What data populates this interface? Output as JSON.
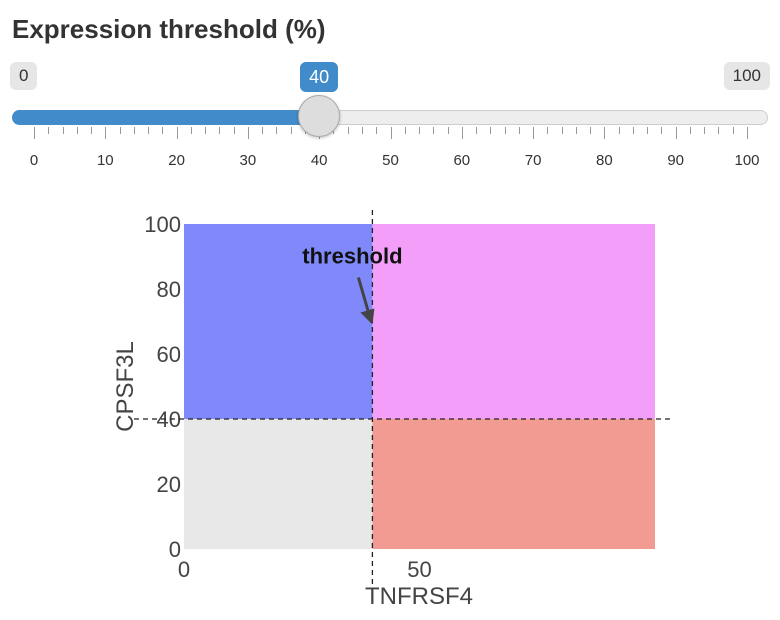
{
  "slider": {
    "title": "Expression threshold (%)",
    "min": 0,
    "max": 100,
    "min_label": "0",
    "max_label": "100",
    "value": 40,
    "value_label": "40",
    "tick_labels": [
      "0",
      "10",
      "20",
      "30",
      "40",
      "50",
      "60",
      "70",
      "80",
      "90",
      "100"
    ],
    "colors": {
      "fill": "#428bca",
      "track": "#eeeeee"
    }
  },
  "chart_data": {
    "type": "heatmap",
    "xlabel": "TNFRSF4",
    "ylabel": "CPSF3L",
    "xlim": [
      0,
      100
    ],
    "ylim": [
      0,
      100
    ],
    "x_tick_labels": [
      "0",
      "50"
    ],
    "y_tick_labels": [
      "0",
      "20",
      "40",
      "60",
      "80",
      "100"
    ],
    "threshold": 40,
    "quadrants": [
      {
        "x": [
          0,
          40
        ],
        "y": [
          0,
          40
        ],
        "color": "#e8e8e8"
      },
      {
        "x": [
          0,
          40
        ],
        "y": [
          40,
          100
        ],
        "color": "#7f89f9"
      },
      {
        "x": [
          40,
          100
        ],
        "y": [
          40,
          100
        ],
        "color": "#f39ef9"
      },
      {
        "x": [
          40,
          100
        ],
        "y": [
          0,
          40
        ],
        "color": "#f29b92"
      }
    ],
    "annotation": {
      "text": "threshold",
      "x": 40,
      "y": 70
    }
  }
}
